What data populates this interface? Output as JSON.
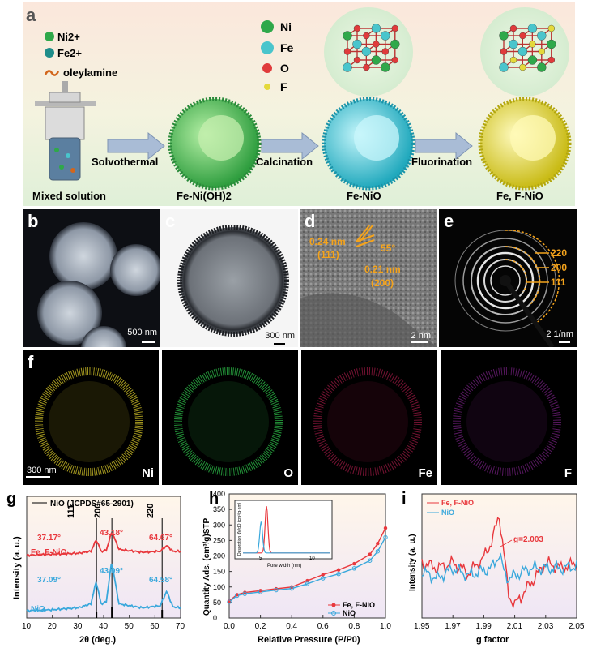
{
  "panel_a": {
    "letter": "a",
    "legend_left": [
      "Ni2+",
      "Fe2+",
      "oleylamine"
    ],
    "legend_right": [
      "Ni",
      "Fe",
      "O",
      "F"
    ],
    "steps": [
      "Solvothermal",
      "Calcination",
      "Fluorination"
    ],
    "stage_labels": [
      "Mixed solution",
      "Fe-Ni(OH)2",
      "Fe-NiO",
      "Fe, F-NiO"
    ],
    "colors": {
      "ni": "#2fa84a",
      "fe": "#49c5cc",
      "o": "#e03b3b",
      "f": "#e4d93b",
      "shell_green": "#3fae4e",
      "shell_cyan": "#3ec3d1",
      "shell_yellow": "#d9cf30"
    }
  },
  "panel_b": {
    "letter": "b",
    "scalebar": "500 nm"
  },
  "panel_c": {
    "letter": "c",
    "scalebar": "300 nm"
  },
  "panel_d": {
    "letter": "d",
    "annotations": [
      "0.24 nm",
      "(111)",
      "55°",
      "0.21 nm",
      "(200)"
    ],
    "scalebar": "2 nm"
  },
  "panel_e": {
    "letter": "e",
    "rings": [
      "220",
      "200",
      "111"
    ],
    "scalebar": "2 1/nm"
  },
  "panel_f": {
    "letter": "f",
    "scalebar": "300 nm",
    "elements": [
      "Ni",
      "O",
      "Fe",
      "F"
    ],
    "colors": [
      "#d8c82a",
      "#2ec04a",
      "#d0205a",
      "#9a2aaa"
    ]
  },
  "panel_g": {
    "letter": "g",
    "legend": "NiO (JCPDS#65-2901)",
    "peak_labels": [
      "111",
      "200",
      "220"
    ],
    "series_labels": [
      "Fe, F-NiO",
      "NiO"
    ],
    "peak_positions_fef": [
      "37.17°",
      "43.18°",
      "64.67°"
    ],
    "peak_positions_nio": [
      "37.09°",
      "43.09°",
      "64.58°"
    ],
    "ylabel": "Intensity (a. u.)",
    "xlabel": "2θ (deg.)",
    "xticks": [
      "10",
      "20",
      "30",
      "40",
      "50",
      "60",
      "70"
    ],
    "colors": {
      "fef": "#e8383d",
      "nio": "#3aa8dc"
    }
  },
  "panel_h": {
    "letter": "h",
    "ylabel": "Quantity Ads. (cm³/g)STP",
    "xlabel": "Relative Pressure (P/P0)",
    "xticks": [
      "0.0",
      "0.2",
      "0.4",
      "0.6",
      "0.8",
      "1.0"
    ],
    "yticks": [
      "0",
      "50",
      "100",
      "150",
      "200",
      "250",
      "300",
      "350",
      "400"
    ],
    "legend": [
      "Fe, F-NiO",
      "NiO"
    ],
    "inset_xlabel": "Pore width (nm)",
    "inset_ylabel": "Desorption dV/dD (cm³/g·nm)",
    "inset_xticks": [
      "5",
      "10"
    ]
  },
  "panel_i": {
    "letter": "i",
    "legend": [
      "Fe, F-NiO",
      "NiO"
    ],
    "annotation": "g=2.003",
    "ylabel": "Intensity (a. u.)",
    "xlabel": "g factor",
    "xticks": [
      "1.95",
      "1.97",
      "1.99",
      "2.01",
      "2.03",
      "2.05"
    ]
  },
  "chart_data": [
    {
      "type": "line",
      "xlabel": "2θ (deg.)",
      "ylabel": "Intensity (a. u.)",
      "xlim": [
        10,
        70
      ],
      "series": [
        {
          "name": "Fe, F-NiO",
          "x": [
            10,
            20,
            30,
            35,
            37.17,
            39,
            41,
            43.18,
            46,
            55,
            62,
            64.67,
            67,
            70
          ],
          "values": [
            0.62,
            0.63,
            0.64,
            0.66,
            0.78,
            0.66,
            0.67,
            0.86,
            0.68,
            0.65,
            0.66,
            0.72,
            0.66,
            0.66
          ]
        },
        {
          "name": "NiO",
          "x": [
            10,
            20,
            30,
            35,
            37.09,
            39,
            41,
            43.09,
            46,
            55,
            62,
            64.58,
            67,
            70
          ],
          "values": [
            0.05,
            0.06,
            0.08,
            0.12,
            0.35,
            0.12,
            0.14,
            0.55,
            0.12,
            0.08,
            0.1,
            0.25,
            0.09,
            0.08
          ]
        }
      ]
    },
    {
      "type": "line",
      "xlabel": "Relative Pressure (P/P0)",
      "ylabel": "Quantity Ads. (cm³/g)STP",
      "xlim": [
        0,
        1
      ],
      "ylim": [
        0,
        400
      ],
      "series": [
        {
          "name": "Fe, F-NiO",
          "x": [
            0,
            0.05,
            0.1,
            0.2,
            0.3,
            0.4,
            0.5,
            0.6,
            0.7,
            0.8,
            0.9,
            0.95,
            1.0
          ],
          "values": [
            55,
            75,
            82,
            88,
            94,
            100,
            120,
            140,
            155,
            175,
            205,
            240,
            290
          ]
        },
        {
          "name": "NiO",
          "x": [
            0,
            0.05,
            0.1,
            0.2,
            0.3,
            0.4,
            0.5,
            0.6,
            0.7,
            0.8,
            0.9,
            0.95,
            1.0
          ],
          "values": [
            52,
            72,
            78,
            84,
            90,
            95,
            110,
            128,
            142,
            160,
            185,
            215,
            260
          ]
        }
      ]
    },
    {
      "type": "line",
      "xlabel": "g factor",
      "ylabel": "Intensity (a. u.)",
      "xlim": [
        1.95,
        2.05
      ],
      "series": [
        {
          "name": "Fe, F-NiO",
          "x": [
            1.95,
            1.96,
            1.97,
            1.98,
            1.99,
            1.995,
            2.0,
            2.003,
            2.006,
            2.01,
            2.02,
            2.03,
            2.04,
            2.05
          ],
          "values": [
            0.5,
            0.45,
            0.5,
            0.4,
            0.55,
            0.7,
            0.95,
            0.6,
            0.2,
            0.1,
            0.3,
            0.5,
            0.45,
            0.5
          ]
        },
        {
          "name": "NiO",
          "x": [
            1.95,
            1.96,
            1.97,
            1.98,
            1.99,
            1.995,
            2.0,
            2.003,
            2.006,
            2.01,
            2.02,
            2.03,
            2.04,
            2.05
          ],
          "values": [
            0.42,
            0.35,
            0.45,
            0.38,
            0.43,
            0.45,
            0.58,
            0.42,
            0.35,
            0.38,
            0.45,
            0.45,
            0.45,
            0.47
          ]
        }
      ]
    }
  ]
}
